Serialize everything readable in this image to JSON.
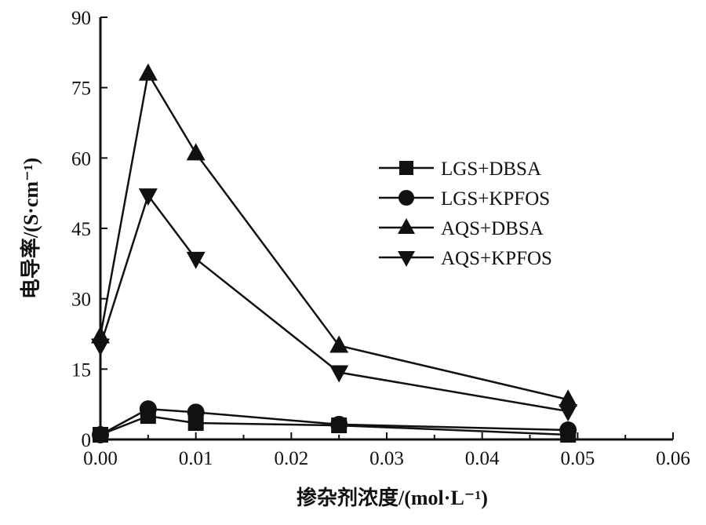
{
  "chart_data": {
    "type": "line",
    "title": "",
    "xlabel": "掺杂剂浓度/(mol·L⁻¹)",
    "ylabel": "电导率/(S·cm⁻¹)",
    "xlim": [
      0,
      0.06
    ],
    "ylim": [
      0,
      90
    ],
    "xticks": [
      "0.00",
      "0.01",
      "0.02",
      "0.03",
      "0.04",
      "0.05",
      "0.06"
    ],
    "yticks": [
      "0",
      "15",
      "30",
      "45",
      "60",
      "75",
      "90"
    ],
    "grid": false,
    "legend_position": "right-center",
    "x": [
      0,
      0.005,
      0.01,
      0.025,
      0.049
    ],
    "series": [
      {
        "name": "LGS+DBSA",
        "marker": "square",
        "values": [
          1,
          5,
          3.5,
          3,
          1
        ]
      },
      {
        "name": "LGS+KPFOS",
        "marker": "circle",
        "values": [
          1,
          6.5,
          5.8,
          3.2,
          2
        ]
      },
      {
        "name": "AQS+DBSA",
        "marker": "triangle-up",
        "values": [
          22,
          78,
          61,
          20,
          8.5
        ]
      },
      {
        "name": "AQS+KPFOS",
        "marker": "triangle-down",
        "values": [
          20,
          52,
          38.5,
          14.3,
          6
        ]
      }
    ]
  }
}
